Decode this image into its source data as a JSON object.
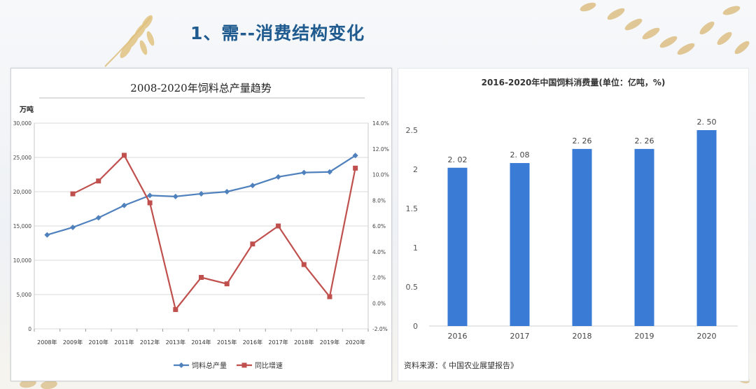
{
  "slide": {
    "title": "1、需--消费结构变化"
  },
  "chart_data": [
    {
      "type": "line",
      "title": "2008-2020年饲料总产量趋势",
      "ylabel": "万吨",
      "categories": [
        "2008年",
        "2009年",
        "2010年",
        "2011年",
        "2012年",
        "2013年",
        "2014年",
        "2015年",
        "2016年",
        "2017年",
        "2018年",
        "2019年",
        "2020年"
      ],
      "ylim": [
        0,
        30000
      ],
      "yticks": [
        "0",
        "5,000",
        "10,000",
        "15,000",
        "20,000",
        "25,000",
        "30,000"
      ],
      "y2lim": [
        -2,
        14
      ],
      "y2ticks": [
        "-2.0%",
        "0.0%",
        "2.0%",
        "4.0%",
        "6.0%",
        "8.0%",
        "10.0%",
        "12.0%",
        "14.0%"
      ],
      "grid": true,
      "legend_position": "bottom",
      "series": [
        {
          "name": "饲料总产量",
          "axis": "left",
          "color": "#4f81bd",
          "marker": "diamond",
          "values": [
            13700,
            14800,
            16200,
            18000,
            19450,
            19300,
            19700,
            20000,
            20900,
            22160,
            22790,
            22885,
            25276
          ]
        },
        {
          "name": "同比增速",
          "axis": "right",
          "color": "#c0504d",
          "marker": "square",
          "values": [
            null,
            8.5,
            9.5,
            11.5,
            7.8,
            -0.5,
            2.0,
            1.5,
            4.6,
            6.0,
            3.0,
            0.5,
            10.5
          ]
        }
      ]
    },
    {
      "type": "bar",
      "title": "2016-2020年中国饲料消费量(单位：亿吨，%)",
      "categories": [
        "2016",
        "2017",
        "2018",
        "2019",
        "2020"
      ],
      "values": [
        2.02,
        2.08,
        2.26,
        2.26,
        2.5
      ],
      "value_labels": [
        "2. 02",
        "2. 08",
        "2. 26",
        "2. 26",
        "2. 50"
      ],
      "ylim": [
        0,
        2.5
      ],
      "yticks": [
        "0",
        "0.5",
        "1",
        "1.5",
        "2",
        "2.5"
      ],
      "color": "#3a7bd5",
      "grid": false,
      "source": "资料来源：《 中国农业展望报告》"
    }
  ]
}
